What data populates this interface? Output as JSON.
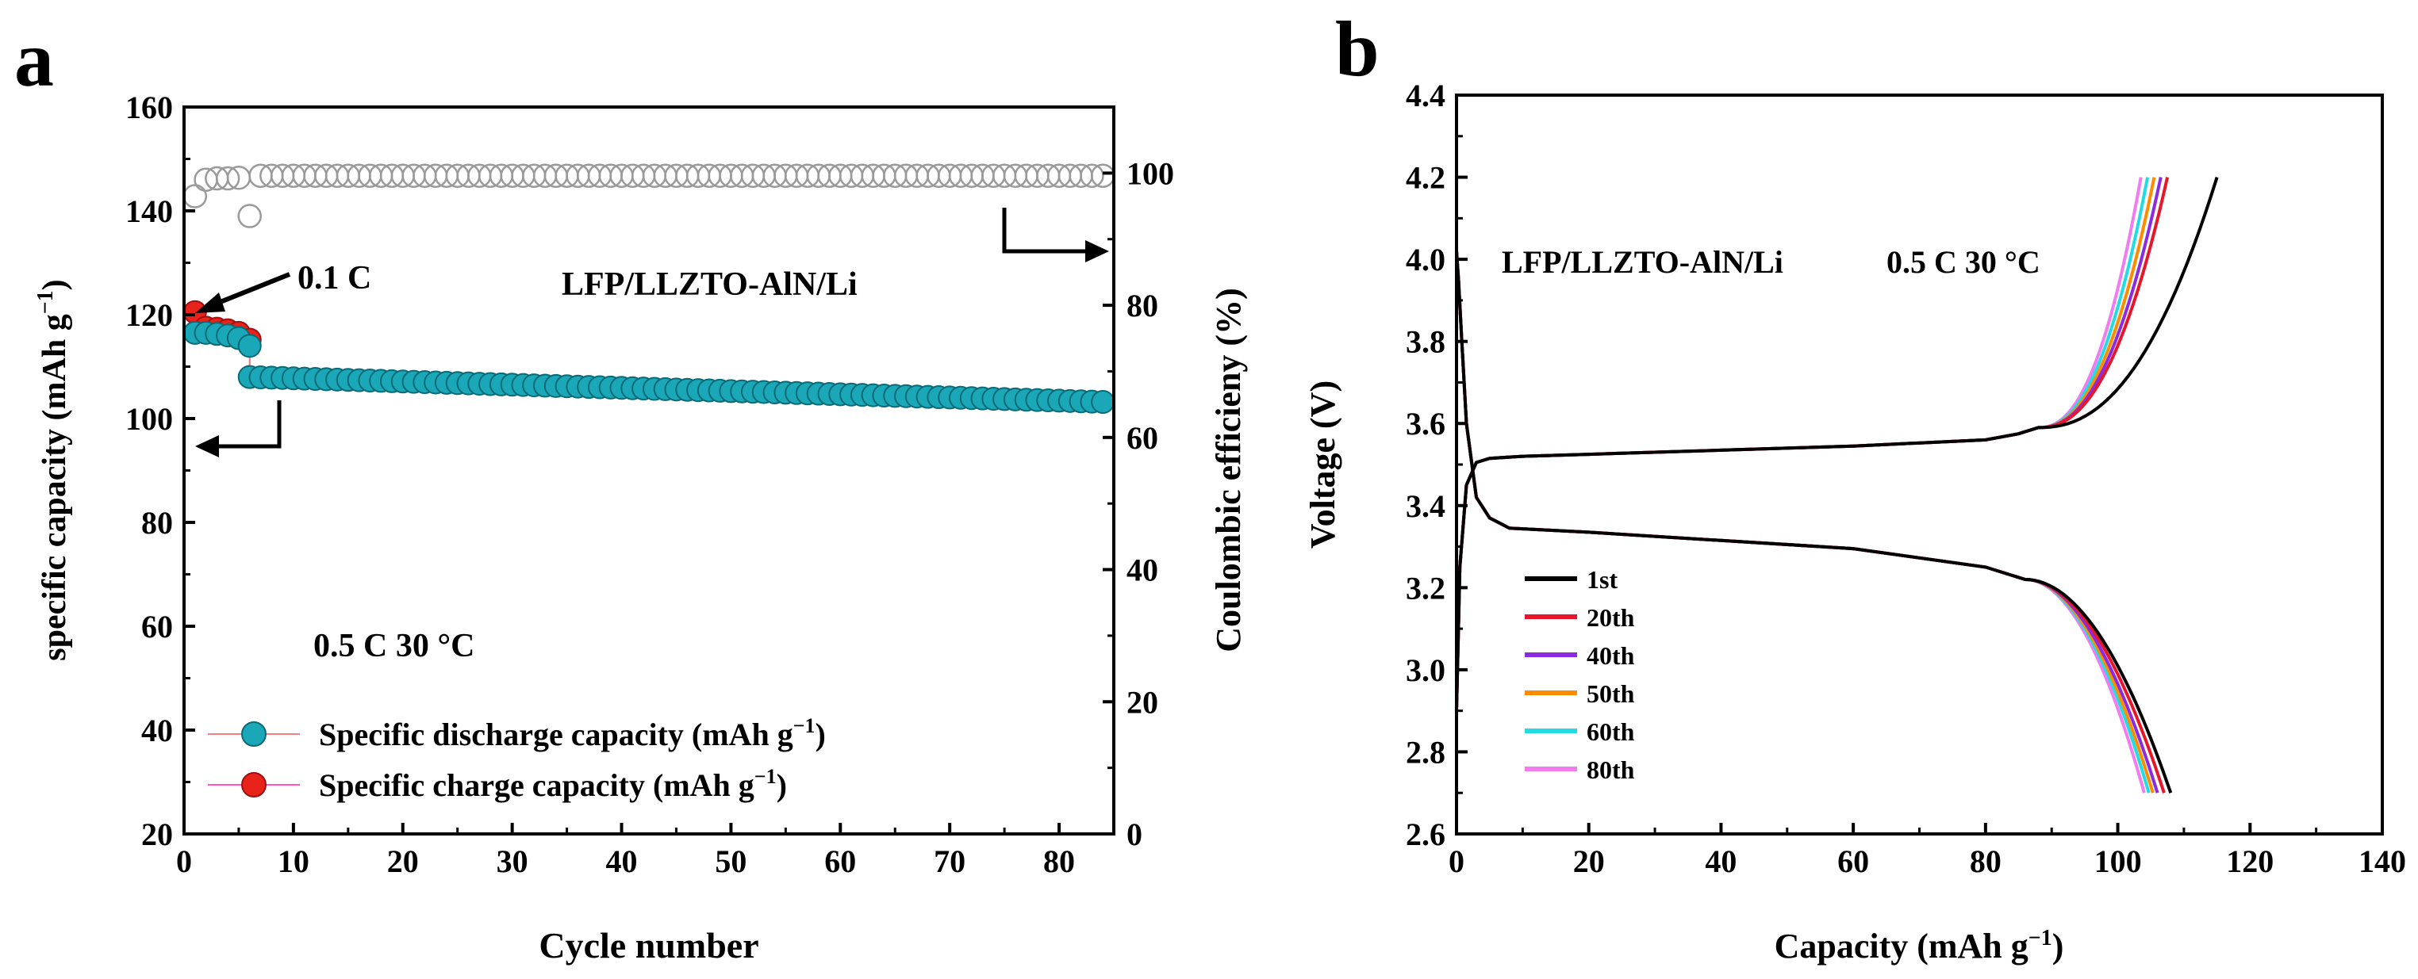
{
  "colors": {
    "discharge": "#1aa7b8",
    "charge": "#e8231a",
    "ce_marker": "#9a9a9a",
    "c_1st": "#000000",
    "c_20th": "#e6172a",
    "c_40th": "#8a2be2",
    "c_50th": "#ff8c00",
    "c_60th": "#22dbe3",
    "c_80th": "#f07cf0"
  },
  "chart_data": [
    {
      "panel_label": "a",
      "type": "scatter",
      "xlabel": "Cycle number",
      "ylabel": "specific capacity (mAh g",
      "ylabel_sup": "−1",
      "ylabel_end": ")",
      "y2label": "Coulombic efficieny (%)",
      "xlim": [
        0,
        85
      ],
      "ylim": [
        20,
        160
      ],
      "y2lim": [
        0,
        110
      ],
      "xticks": [
        0,
        10,
        20,
        30,
        40,
        50,
        60,
        70,
        80
      ],
      "yticks": [
        20,
        40,
        60,
        80,
        100,
        120,
        140,
        160
      ],
      "y2ticks": [
        0,
        20,
        40,
        60,
        80,
        100
      ],
      "annotations": {
        "rate_low": "0.1 C",
        "cell": "LFP/LLZTO-AlN/Li",
        "conditions": "0.5 C  30 °C"
      },
      "legend": [
        {
          "name": "Specific discharge capacity (mAh g",
          "sup": "−1",
          "end": ")"
        },
        {
          "name": "Specific charge capacity (mAh g",
          "sup": "−1",
          "end": ")"
        }
      ],
      "series": [
        {
          "name": "Specific charge capacity",
          "x": [
            1,
            2,
            3,
            4,
            5,
            6
          ],
          "y": [
            120.5,
            117.5,
            117.3,
            117,
            116.5,
            115.2
          ]
        },
        {
          "name": "Specific discharge capacity",
          "x": [
            1,
            2,
            3,
            4,
            5,
            6
          ],
          "y": [
            116.5,
            116.5,
            116.3,
            116,
            115.5,
            114
          ],
          "cycles_0_5C": {
            "from": 6,
            "to": 84,
            "start": 108,
            "end": 103.2
          }
        },
        {
          "name": "Coulombic efficiency",
          "axis": "right",
          "x": [
            1,
            2,
            3,
            4,
            5,
            6
          ],
          "y": [
            96.5,
            99,
            99.2,
            99.2,
            99.3,
            93.5
          ],
          "cycles_0_5C": {
            "from": 7,
            "to": 84,
            "value": 99.6
          }
        }
      ]
    },
    {
      "panel_label": "b",
      "type": "line",
      "xlabel": "Capacity (mAh g",
      "xlabel_sup": "−1",
      "xlabel_end": ")",
      "ylabel": "Voltage (V)",
      "xlim": [
        0,
        140
      ],
      "ylim": [
        2.6,
        4.4
      ],
      "xticks": [
        0,
        20,
        40,
        60,
        80,
        100,
        120,
        140
      ],
      "yticks": [
        2.6,
        2.8,
        3.0,
        3.2,
        3.4,
        3.6,
        3.8,
        4.0,
        4.2,
        4.4
      ],
      "annotations": {
        "cell": "LFP/LLZTO-AlN/Li",
        "conditions": "0.5 C  30 °C"
      },
      "charge_shape": {
        "x": [
          0,
          0.5,
          1.5,
          3,
          5,
          10,
          20,
          40,
          60,
          80,
          85,
          88
        ],
        "y": [
          2.9,
          3.25,
          3.45,
          3.505,
          3.515,
          3.52,
          3.525,
          3.535,
          3.545,
          3.56,
          3.575,
          3.59
        ]
      },
      "discharge_shape": {
        "x": [
          0,
          0.3,
          0.8,
          1.5,
          3,
          5,
          8,
          20,
          40,
          60,
          80,
          86
        ],
        "y": [
          4.02,
          3.95,
          3.8,
          3.6,
          3.42,
          3.37,
          3.345,
          3.335,
          3.315,
          3.295,
          3.25,
          3.22
        ]
      },
      "series": [
        {
          "name": "1st",
          "charge_end": 115,
          "discharge_end": 108
        },
        {
          "name": "20th",
          "charge_end": 107.5,
          "discharge_end": 107
        },
        {
          "name": "40th",
          "charge_end": 106.5,
          "discharge_end": 106
        },
        {
          "name": "50th",
          "charge_end": 105.5,
          "discharge_end": 105.3
        },
        {
          "name": "60th",
          "charge_end": 104.5,
          "discharge_end": 104.7
        },
        {
          "name": "80th",
          "charge_end": 103.5,
          "discharge_end": 104
        }
      ]
    }
  ]
}
